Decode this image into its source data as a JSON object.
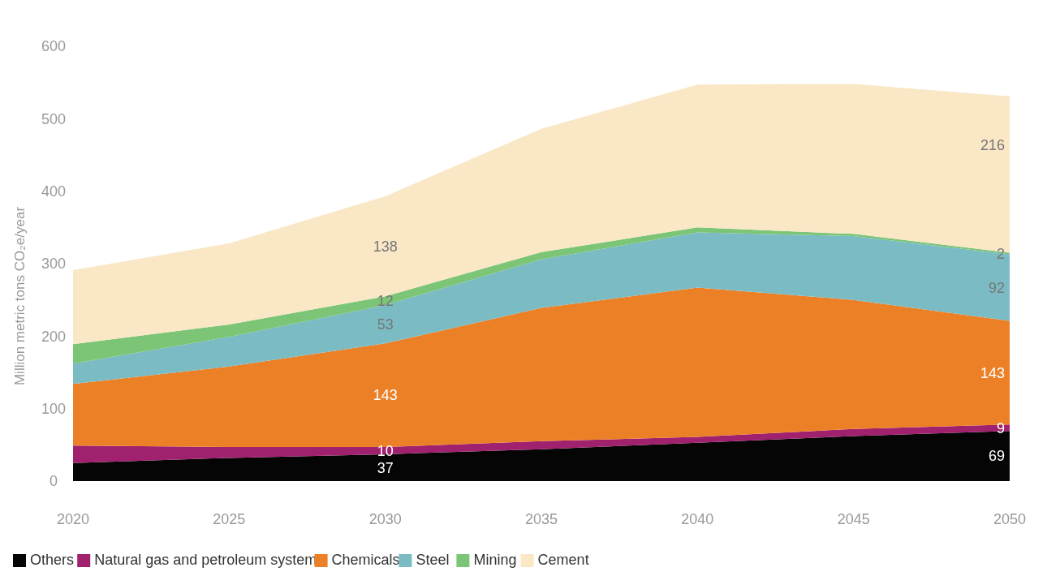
{
  "chart_data": {
    "type": "area",
    "stacked": true,
    "ylabel": "Million metric tons CO₂e/year",
    "x": [
      2020,
      2025,
      2030,
      2035,
      2040,
      2045,
      2050
    ],
    "xlim": [
      2020,
      2050
    ],
    "xticks": [
      2020,
      2025,
      2030,
      2035,
      2040,
      2045,
      2050
    ],
    "ylim": [
      0,
      600
    ],
    "yticks": [
      0,
      100,
      200,
      300,
      400,
      500,
      600
    ],
    "grid": false,
    "legend": "bottom",
    "series": [
      {
        "name": "Others",
        "color": "#050505",
        "values": [
          25,
          32,
          37,
          44,
          53,
          62,
          69
        ],
        "value_labels": [
          null,
          null,
          "37",
          null,
          null,
          null,
          "69"
        ]
      },
      {
        "name": "Natural gas and petroleum system",
        "color": "#a0216e",
        "values": [
          24,
          15,
          10,
          11,
          8,
          10,
          9
        ],
        "value_labels": [
          null,
          null,
          "10",
          null,
          null,
          null,
          "9"
        ]
      },
      {
        "name": "Chemicals",
        "color": "#ec8026",
        "values": [
          85,
          111,
          143,
          184,
          206,
          178,
          143
        ],
        "value_labels": [
          null,
          null,
          "143",
          null,
          null,
          null,
          "143"
        ]
      },
      {
        "name": "Steel",
        "color": "#7bbbc4",
        "values": [
          28,
          41,
          53,
          67,
          76,
          88,
          92
        ],
        "value_labels": [
          null,
          null,
          "53",
          null,
          null,
          null,
          "92"
        ]
      },
      {
        "name": "Mining",
        "color": "#7cc576",
        "values": [
          27,
          17,
          12,
          10,
          7,
          3,
          2
        ],
        "value_labels": [
          null,
          null,
          "12",
          null,
          null,
          null,
          "2"
        ]
      },
      {
        "name": "Cement",
        "color": "#f9e7c5",
        "values": [
          102,
          112,
          138,
          170,
          197,
          207,
          216
        ],
        "value_labels": [
          null,
          null,
          "138",
          null,
          null,
          null,
          "216"
        ]
      }
    ]
  }
}
